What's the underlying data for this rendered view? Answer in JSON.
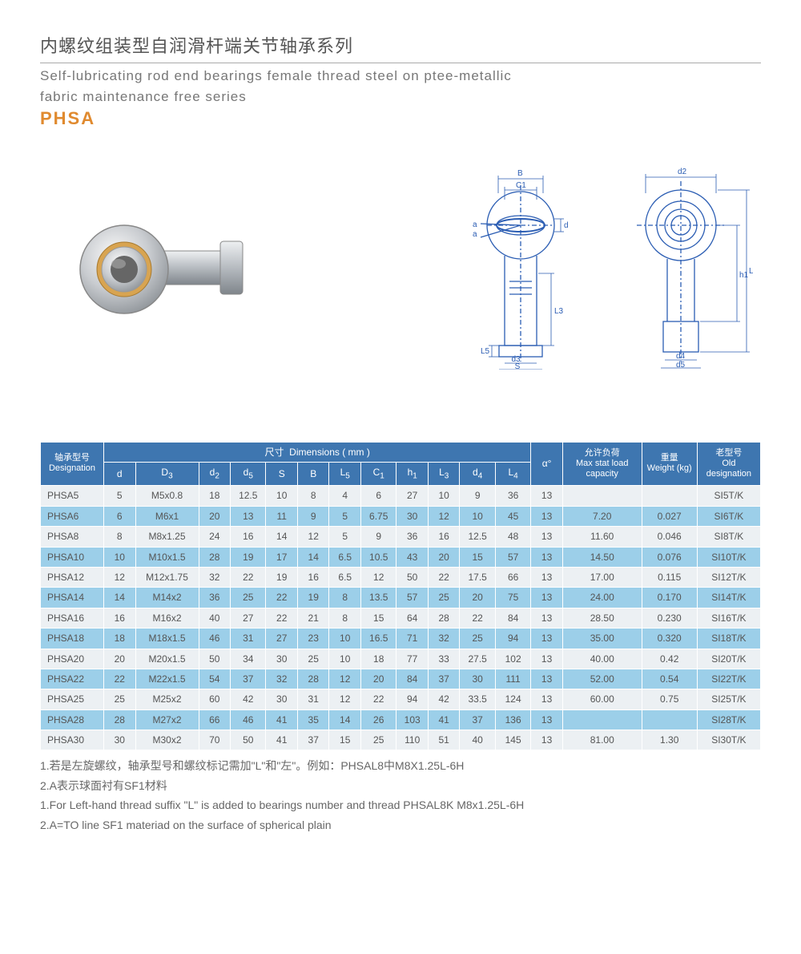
{
  "header": {
    "title_cn": "内螺纹组装型自润滑杆端关节轴承系列",
    "title_en_line1": "Self-lubricating rod end bearings female thread steel on ptee-metallic",
    "title_en_line2": "fabric maintenance free series",
    "model": "PHSA",
    "model_color": "#e08a2f"
  },
  "diagram": {
    "stroke": "#2b5db3",
    "labels": {
      "B": "B",
      "C1": "C1",
      "a": "a",
      "d": "d",
      "L5": "L5",
      "d3": "d3",
      "S": "S",
      "L3": "L3",
      "d2": "d2",
      "h1": "h1",
      "L4": "L4",
      "d4": "d4",
      "d5": "d5"
    }
  },
  "table": {
    "head": {
      "designation_cn": "轴承型号",
      "designation_en": "Designation",
      "dims_cn": "尺寸",
      "dims_en": "Dimensions ( mm )",
      "alpha": "α°",
      "maxload_cn": "允许负荷",
      "maxload_en": "Max stat load capacity",
      "weight_cn": "重量",
      "weight_en": "Weight (kg)",
      "old_cn": "老型号",
      "old_en": "Old designation",
      "cols": [
        "d",
        "D3",
        "d2",
        "d5",
        "S",
        "B",
        "L5",
        "C1",
        "h1",
        "L3",
        "d4",
        "L4"
      ]
    },
    "rows": [
      {
        "desig": "PHSA5",
        "d": "5",
        "D3": "M5x0.8",
        "d2": "18",
        "d5": "12.5",
        "S": "10",
        "B": "8",
        "L5": "4",
        "C1": "6",
        "h1": "27",
        "L3": "10",
        "d4": "9",
        "L4": "36",
        "a": "13",
        "max": "",
        "w": "",
        "old": "SI5T/K"
      },
      {
        "desig": "PHSA6",
        "d": "6",
        "D3": "M6x1",
        "d2": "20",
        "d5": "13",
        "S": "11",
        "B": "9",
        "L5": "5",
        "C1": "6.75",
        "h1": "30",
        "L3": "12",
        "d4": "10",
        "L4": "45",
        "a": "13",
        "max": "7.20",
        "w": "0.027",
        "old": "SI6T/K"
      },
      {
        "desig": "PHSA8",
        "d": "8",
        "D3": "M8x1.25",
        "d2": "24",
        "d5": "16",
        "S": "14",
        "B": "12",
        "L5": "5",
        "C1": "9",
        "h1": "36",
        "L3": "16",
        "d4": "12.5",
        "L4": "48",
        "a": "13",
        "max": "11.60",
        "w": "0.046",
        "old": "SI8T/K"
      },
      {
        "desig": "PHSA10",
        "d": "10",
        "D3": "M10x1.5",
        "d2": "28",
        "d5": "19",
        "S": "17",
        "B": "14",
        "L5": "6.5",
        "C1": "10.5",
        "h1": "43",
        "L3": "20",
        "d4": "15",
        "L4": "57",
        "a": "13",
        "max": "14.50",
        "w": "0.076",
        "old": "SI10T/K"
      },
      {
        "desig": "PHSA12",
        "d": "12",
        "D3": "M12x1.75",
        "d2": "32",
        "d5": "22",
        "S": "19",
        "B": "16",
        "L5": "6.5",
        "C1": "12",
        "h1": "50",
        "L3": "22",
        "d4": "17.5",
        "L4": "66",
        "a": "13",
        "max": "17.00",
        "w": "0.115",
        "old": "SI12T/K"
      },
      {
        "desig": "PHSA14",
        "d": "14",
        "D3": "M14x2",
        "d2": "36",
        "d5": "25",
        "S": "22",
        "B": "19",
        "L5": "8",
        "C1": "13.5",
        "h1": "57",
        "L3": "25",
        "d4": "20",
        "L4": "75",
        "a": "13",
        "max": "24.00",
        "w": "0.170",
        "old": "SI14T/K"
      },
      {
        "desig": "PHSA16",
        "d": "16",
        "D3": "M16x2",
        "d2": "40",
        "d5": "27",
        "S": "22",
        "B": "21",
        "L5": "8",
        "C1": "15",
        "h1": "64",
        "L3": "28",
        "d4": "22",
        "L4": "84",
        "a": "13",
        "max": "28.50",
        "w": "0.230",
        "old": "SI16T/K"
      },
      {
        "desig": "PHSA18",
        "d": "18",
        "D3": "M18x1.5",
        "d2": "46",
        "d5": "31",
        "S": "27",
        "B": "23",
        "L5": "10",
        "C1": "16.5",
        "h1": "71",
        "L3": "32",
        "d4": "25",
        "L4": "94",
        "a": "13",
        "max": "35.00",
        "w": "0.320",
        "old": "SI18T/K"
      },
      {
        "desig": "PHSA20",
        "d": "20",
        "D3": "M20x1.5",
        "d2": "50",
        "d5": "34",
        "S": "30",
        "B": "25",
        "L5": "10",
        "C1": "18",
        "h1": "77",
        "L3": "33",
        "d4": "27.5",
        "L4": "102",
        "a": "13",
        "max": "40.00",
        "w": "0.42",
        "old": "SI20T/K"
      },
      {
        "desig": "PHSA22",
        "d": "22",
        "D3": "M22x1.5",
        "d2": "54",
        "d5": "37",
        "S": "32",
        "B": "28",
        "L5": "12",
        "C1": "20",
        "h1": "84",
        "L3": "37",
        "d4": "30",
        "L4": "111",
        "a": "13",
        "max": "52.00",
        "w": "0.54",
        "old": "SI22T/K"
      },
      {
        "desig": "PHSA25",
        "d": "25",
        "D3": "M25x2",
        "d2": "60",
        "d5": "42",
        "S": "30",
        "B": "31",
        "L5": "12",
        "C1": "22",
        "h1": "94",
        "L3": "42",
        "d4": "33.5",
        "L4": "124",
        "a": "13",
        "max": "60.00",
        "w": "0.75",
        "old": "SI25T/K"
      },
      {
        "desig": "PHSA28",
        "d": "28",
        "D3": "M27x2",
        "d2": "66",
        "d5": "46",
        "S": "41",
        "B": "35",
        "L5": "14",
        "C1": "26",
        "h1": "103",
        "L3": "41",
        "d4": "37",
        "L4": "136",
        "a": "13",
        "max": "",
        "w": "",
        "old": "SI28T/K"
      },
      {
        "desig": "PHSA30",
        "d": "30",
        "D3": "M30x2",
        "d2": "70",
        "d5": "50",
        "S": "41",
        "B": "37",
        "L5": "15",
        "C1": "25",
        "h1": "110",
        "L3": "51",
        "d4": "40",
        "L4": "145",
        "a": "13",
        "max": "81.00",
        "w": "1.30",
        "old": "SI30T/K"
      }
    ],
    "col_widths_pct": [
      8,
      4,
      8,
      4,
      4.5,
      4,
      4,
      4,
      4.5,
      4,
      4,
      4.5,
      4.5,
      4,
      10,
      7,
      8
    ]
  },
  "notes": {
    "n1": "1.若是左旋螺纹，轴承型号和螺纹标记需加\"L\"和\"左\"。例如：PHSAL8中M8X1.25L-6H",
    "n2": "2.A表示球面衬有SF1材料",
    "n3": "1.For Left-hand thread suffix \"L\" is added to bearings number and thread PHSAL8K M8x1.25L-6H",
    "n4": "2.A=TO line SF1 materiad on the surface of spherical plain"
  }
}
